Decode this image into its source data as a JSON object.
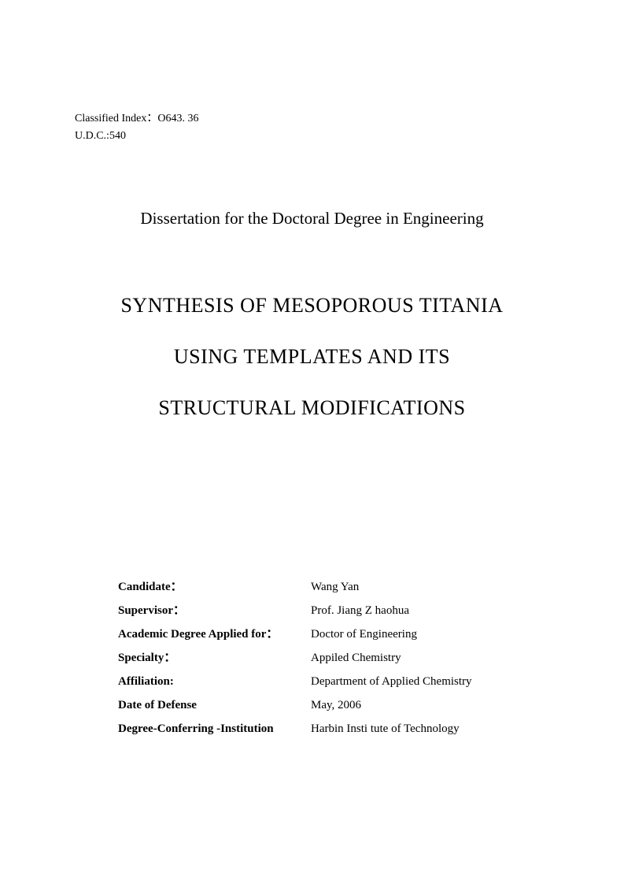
{
  "header": {
    "classified_index_label": "Classified Index：",
    "classified_index_value": "O643. 36",
    "udc_label": "U.D.C.:  ",
    "udc_value": "540"
  },
  "dissertation_type": "Dissertation for the Doctoral Degree in Engineering",
  "title": {
    "line1": "SYNTHESIS OF MESOPOROUS TITANIA",
    "line2": "USING TEMPLATES AND ITS",
    "line3": "STRUCTURAL MODIFICATIONS"
  },
  "info": {
    "candidate_label": "Candidate：",
    "candidate_value": "Wang Yan",
    "supervisor_label": "Supervisor：",
    "supervisor_value": "Prof. Jiang Z haohua",
    "degree_label": "Academic Degree Applied for：",
    "degree_value": "Doctor of Engineering",
    "specialty_label": "Specialty：",
    "specialty_value": "Appiled Chemistry",
    "affiliation_label": "Affiliation:",
    "affiliation_value": "Department  of Applied Chemistry",
    "defense_label": "Date of Defense",
    "defense_value": "May, 2006",
    "institution_label": "Degree-Conferring -Institution",
    "institution_value": "Harbin Insti tute of Technology"
  }
}
